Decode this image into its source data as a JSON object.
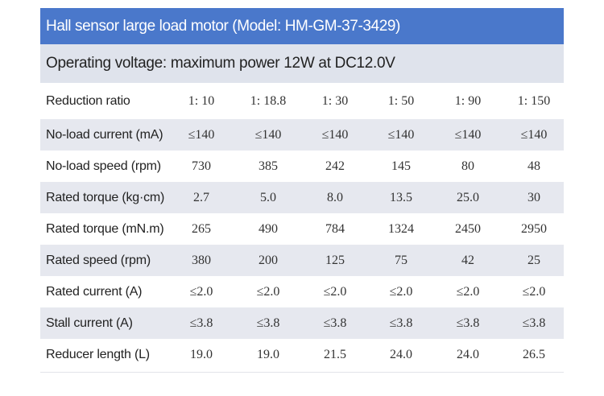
{
  "header": {
    "title": "Hall sensor large load motor (Model: HM-GM-37-3429)",
    "subtitle": "Operating voltage: maximum power 12W at DC12.0V"
  },
  "table": {
    "rows": [
      [
        "Reduction ratio",
        "1: 10",
        "1: 18.8",
        "1: 30",
        "1: 50",
        "1: 90",
        "1: 150"
      ],
      [
        "No-load current (mA)",
        "≤140",
        "≤140",
        "≤140",
        "≤140",
        "≤140",
        "≤140"
      ],
      [
        "No-load speed (rpm)",
        "730",
        "385",
        "242",
        "145",
        "80",
        "48"
      ],
      [
        "Rated torque (kg·cm)",
        "2.7",
        "5.0",
        "8.0",
        "13.5",
        "25.0",
        "30"
      ],
      [
        "Rated torque (mN.m)",
        "265",
        "490",
        "784",
        "1324",
        "2450",
        "2950"
      ],
      [
        "Rated speed (rpm)",
        "380",
        "200",
        "125",
        "75",
        "42",
        "25"
      ],
      [
        "Rated current (A)",
        "≤2.0",
        "≤2.0",
        "≤2.0",
        "≤2.0",
        "≤2.0",
        "≤2.0"
      ],
      [
        "Stall current (A)",
        "≤3.8",
        "≤3.8",
        "≤3.8",
        "≤3.8",
        "≤3.8",
        "≤3.8"
      ],
      [
        "Reducer length (L)",
        "19.0",
        "19.0",
        "21.5",
        "24.0",
        "24.0",
        "26.5"
      ]
    ]
  }
}
